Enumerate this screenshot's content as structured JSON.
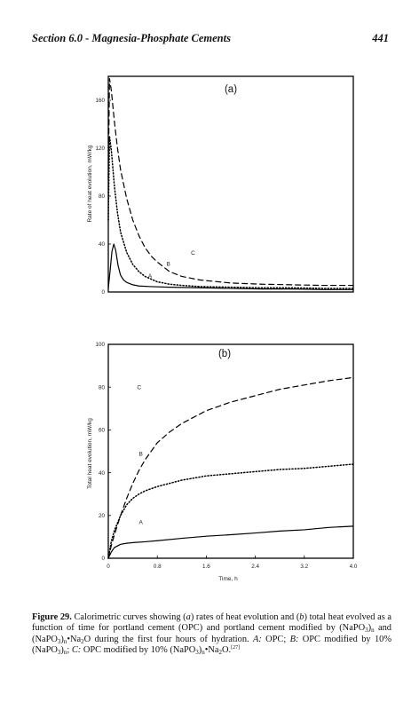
{
  "header": {
    "section_title": "Section 6.0 - Magnesia-Phosphate Cements",
    "page_number": "441"
  },
  "chart_data": [
    {
      "type": "line",
      "panel_label": "(a)",
      "xlabel": "",
      "ylabel": "Rate of heat evolution, mW/kg",
      "xlim": [
        0,
        4.0
      ],
      "ylim": [
        0,
        180
      ],
      "y_ticks": [
        "0",
        "40",
        "80",
        "120",
        "160"
      ],
      "series": [
        {
          "name": "A",
          "style": "solid",
          "x": [
            0,
            0.03,
            0.06,
            0.09,
            0.12,
            0.16,
            0.2,
            0.25,
            0.3,
            0.4,
            0.5,
            0.7,
            1.0,
            1.5,
            2.0,
            2.5,
            3.0,
            3.5,
            4.0
          ],
          "y": [
            3,
            18,
            34,
            40,
            35,
            22,
            14,
            10,
            8,
            6,
            5,
            4.5,
            4,
            3.5,
            3,
            2.5,
            2.5,
            2,
            2
          ]
        },
        {
          "name": "B",
          "style": "dotted",
          "x": [
            0,
            0.02,
            0.05,
            0.1,
            0.15,
            0.2,
            0.3,
            0.4,
            0.5,
            0.6,
            0.8,
            1.0,
            1.2,
            1.5,
            2.0,
            2.5,
            3.0,
            3.5,
            4.0
          ],
          "y": [
            60,
            130,
            118,
            88,
            66,
            50,
            33,
            23,
            17,
            13,
            8.5,
            6.5,
            5.5,
            4.5,
            4,
            3.5,
            3.5,
            3,
            3
          ]
        },
        {
          "name": "C",
          "style": "dashed",
          "x": [
            0,
            0.02,
            0.05,
            0.1,
            0.15,
            0.2,
            0.3,
            0.4,
            0.5,
            0.6,
            0.7,
            0.8,
            1.0,
            1.2,
            1.5,
            2.0,
            2.5,
            3.0,
            3.5,
            4.0
          ],
          "y": [
            95,
            178,
            168,
            142,
            120,
            102,
            78,
            60,
            47,
            37,
            30,
            25,
            17,
            13,
            10,
            7.5,
            6.5,
            6,
            5.5,
            5.5
          ]
        }
      ]
    },
    {
      "type": "line",
      "panel_label": "(b)",
      "xlabel": "Time, h",
      "ylabel": "Total heat evolution, mW/kg",
      "xlim": [
        0,
        4.0
      ],
      "ylim": [
        0,
        100
      ],
      "x_ticks": [
        "0",
        "0.8",
        "1.6",
        "2.4",
        "3.2",
        "4.0"
      ],
      "y_ticks": [
        "0",
        "20",
        "40",
        "60",
        "80",
        "100"
      ],
      "series": [
        {
          "name": "A",
          "style": "solid",
          "x": [
            0,
            0.05,
            0.1,
            0.2,
            0.3,
            0.4,
            0.6,
            0.8,
            1.2,
            1.6,
            2.0,
            2.4,
            2.8,
            3.2,
            3.6,
            4.0
          ],
          "y": [
            0,
            3,
            5,
            6.5,
            7,
            7.3,
            7.7,
            8.2,
            9.3,
            10.3,
            11,
            11.8,
            12.7,
            13.3,
            14.4,
            15
          ]
        },
        {
          "name": "B",
          "style": "dotted",
          "x": [
            0,
            0.05,
            0.1,
            0.2,
            0.3,
            0.4,
            0.5,
            0.6,
            0.8,
            1.0,
            1.2,
            1.6,
            2.0,
            2.4,
            2.8,
            3.2,
            3.6,
            4.0
          ],
          "y": [
            0,
            8,
            13,
            20,
            25,
            28,
            30,
            31.5,
            33.5,
            35,
            36.5,
            38.5,
            39.5,
            40.5,
            41.5,
            42,
            43,
            44
          ]
        },
        {
          "name": "C",
          "style": "dashed",
          "x": [
            0,
            0.05,
            0.1,
            0.2,
            0.3,
            0.4,
            0.5,
            0.6,
            0.8,
            1.0,
            1.2,
            1.6,
            2.0,
            2.4,
            2.8,
            3.2,
            3.6,
            4.0
          ],
          "y": [
            0,
            6,
            11,
            20,
            28,
            35,
            41,
            46,
            54,
            59,
            63,
            69,
            73,
            76,
            79,
            81,
            83,
            84.5
          ]
        }
      ]
    }
  ],
  "caption": {
    "lead": "Figure 29.",
    "t1": " Calorimetric curves showing (",
    "a": "a",
    "t2": ") rates of heat evolution and (",
    "b": "b",
    "t3": ") total heat evolved as a function of time for portland cement (OPC) and portland cement modified by (NaPO",
    "sub3a": "3",
    "t4": ")",
    "subna": "n",
    "t5": " and (NaPO",
    "sub3b": "3",
    "t6": ")",
    "subnb": "n",
    "t7": "•Na",
    "sub2": "2",
    "t8": "O during the first four hours of hydration. ",
    "A": "A:",
    "t9": " OPC; ",
    "B": "B:",
    "t10": " OPC modified by 10% (NaPO",
    "sub3c": "3",
    "t11": ")",
    "subnc": "n",
    "t12": "; ",
    "C": "C:",
    "t13": " OPC modified by 10% (NaPO",
    "sub3d": "3",
    "t14": ")",
    "subnd": "n",
    "t15": "•Na",
    "sub2b": "2",
    "t16": "O.",
    "ref": "[27]"
  }
}
